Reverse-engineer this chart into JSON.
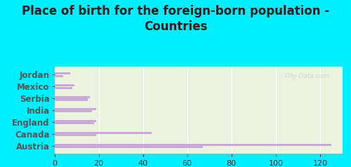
{
  "title": "Place of birth for the foreign-born population -\nCountries",
  "categories": [
    "Jordan",
    "Mexico",
    "Serbia",
    "India",
    "England",
    "Canada",
    "Austria"
  ],
  "bar1_values": [
    125,
    44,
    19,
    19,
    16,
    9,
    7
  ],
  "bar2_values": [
    67,
    19,
    18,
    17,
    15,
    8,
    4
  ],
  "bar_color": "#c9aad8",
  "background_chart": "#edf2e0",
  "background_outer": "#00eeff",
  "xlim": [
    0,
    130
  ],
  "xticks": [
    0,
    20,
    40,
    60,
    80,
    100,
    120
  ],
  "title_fontsize": 12,
  "label_fontsize": 8.5,
  "tick_fontsize": 8,
  "bar_height": 0.18,
  "bar_gap": 0.22,
  "watermark": "City-Data.com"
}
